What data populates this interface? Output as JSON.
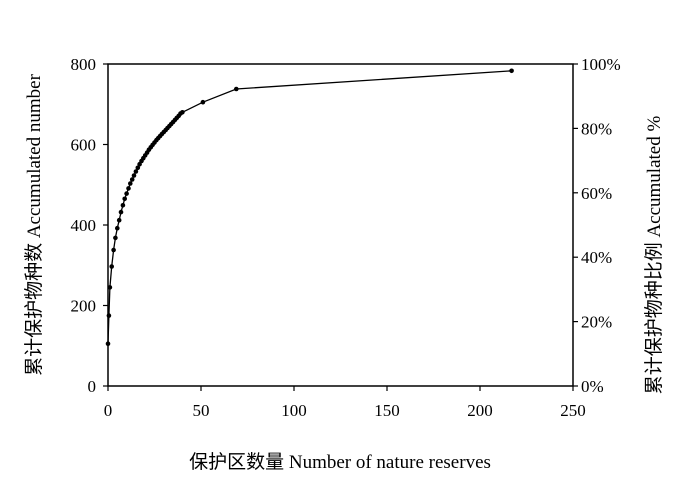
{
  "chart_data": {
    "type": "line",
    "xlabel": "保护区数量 Number of nature reserves",
    "ylabel_left": "累计保护物种数 Accumulated number",
    "ylabel_right": "累计保护物种比例 Accumulated %",
    "xlim": [
      0,
      250
    ],
    "ylim_left": [
      0,
      800
    ],
    "ylim_right": [
      0,
      100
    ],
    "x_ticks": [
      "0",
      "50",
      "100",
      "150",
      "200",
      "250"
    ],
    "y_left_ticks": [
      "0",
      "200",
      "400",
      "600",
      "800"
    ],
    "y_right_ticks": [
      "0%",
      "20%",
      "40%",
      "60%",
      "80%",
      "100%"
    ],
    "grid": false,
    "colors": {
      "line": "#000000",
      "marker": "#000000"
    },
    "series": [
      {
        "x": [
          0,
          0.5,
          1,
          2,
          3,
          4,
          5,
          6,
          7,
          8,
          9,
          10,
          11,
          12,
          13,
          14,
          15,
          16,
          17,
          18,
          19,
          20,
          21,
          22,
          23,
          24,
          25,
          26,
          27,
          28,
          29,
          30,
          31,
          32,
          33,
          34,
          35,
          36,
          37,
          38,
          39,
          40,
          51,
          69,
          217
        ],
        "y": [
          105,
          175,
          245,
          297,
          338,
          368,
          392,
          412,
          432,
          449,
          465,
          478,
          491,
          503,
          513,
          523,
          533,
          542,
          551,
          559,
          566,
          573,
          580,
          587,
          593,
          599,
          605,
          611,
          616,
          621,
          626,
          631,
          636,
          641,
          646,
          651,
          656,
          661,
          666,
          671,
          677,
          680,
          705,
          738,
          783
        ]
      }
    ]
  }
}
